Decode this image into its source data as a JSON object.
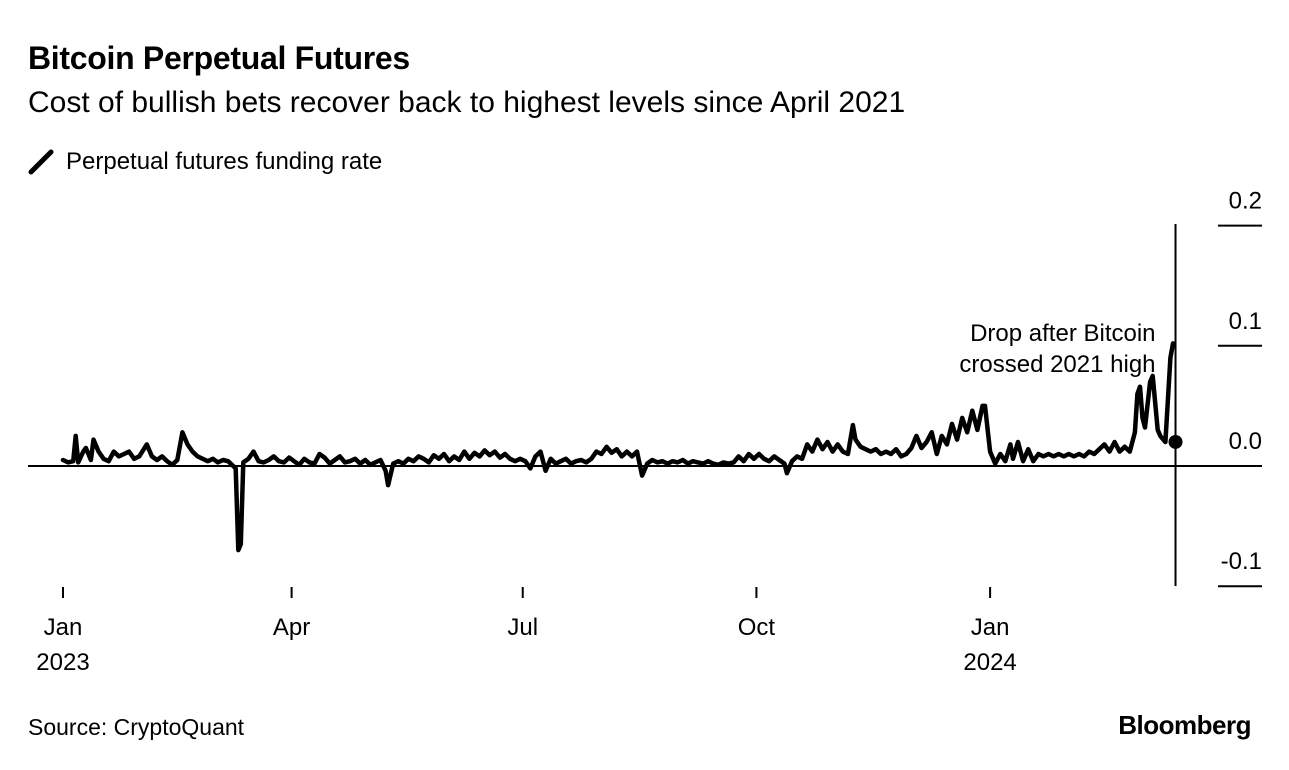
{
  "title": "Bitcoin Perpetual Futures",
  "subtitle": "Cost of bullish bets recover back to highest levels since April 2021",
  "source": "Source: CryptoQuant",
  "brand": "Bloomberg",
  "chart_data": {
    "type": "line",
    "title": "Bitcoin Perpetual Futures",
    "subtitle": "Cost of bullish bets recover back to highest levels since April 2021",
    "legend": [
      "Perpetual futures funding rate"
    ],
    "legend_position": "top-left",
    "y_axis_position": "right",
    "ylim": [
      -0.1,
      0.2
    ],
    "y_ticks": [
      {
        "value": 0.2,
        "label": "0.2"
      },
      {
        "value": 0.1,
        "label": "0.1"
      },
      {
        "value": 0.0,
        "label": "0.0"
      },
      {
        "value": -0.1,
        "label": "-0.1"
      }
    ],
    "x_ticks": [
      {
        "date": "2023-01-01",
        "line1": "Jan",
        "line2": "2023"
      },
      {
        "date": "2023-04-01",
        "line1": "Apr",
        "line2": ""
      },
      {
        "date": "2023-07-01",
        "line1": "Jul",
        "line2": ""
      },
      {
        "date": "2023-10-01",
        "line1": "Oct",
        "line2": ""
      },
      {
        "date": "2024-01-01",
        "line1": "Jan",
        "line2": "2024"
      }
    ],
    "xlim": [
      "2023-01-01",
      "2024-03-22"
    ],
    "color": "#000000",
    "grid": false,
    "annotation": {
      "text_lines": [
        "Drop after Bitcoin",
        "crossed 2021 high"
      ],
      "date": "2024-03-14",
      "value": 0.02
    },
    "series": [
      {
        "name": "Perpetual futures funding rate",
        "points": [
          [
            "2023-01-01",
            0.005
          ],
          [
            "2023-01-03",
            0.003
          ],
          [
            "2023-01-05",
            0.004
          ],
          [
            "2023-01-06",
            0.025
          ],
          [
            "2023-01-07",
            0.003
          ],
          [
            "2023-01-09",
            0.012
          ],
          [
            "2023-01-10",
            0.015
          ],
          [
            "2023-01-12",
            0.005
          ],
          [
            "2023-01-13",
            0.022
          ],
          [
            "2023-01-15",
            0.012
          ],
          [
            "2023-01-17",
            0.006
          ],
          [
            "2023-01-19",
            0.004
          ],
          [
            "2023-01-21",
            0.012
          ],
          [
            "2023-01-23",
            0.008
          ],
          [
            "2023-01-25",
            0.01
          ],
          [
            "2023-01-27",
            0.012
          ],
          [
            "2023-01-29",
            0.006
          ],
          [
            "2023-01-31",
            0.008
          ],
          [
            "2023-02-03",
            0.018
          ],
          [
            "2023-02-05",
            0.008
          ],
          [
            "2023-02-07",
            0.005
          ],
          [
            "2023-02-09",
            0.008
          ],
          [
            "2023-02-11",
            0.004
          ],
          [
            "2023-02-13",
            0.001
          ],
          [
            "2023-02-15",
            0.005
          ],
          [
            "2023-02-17",
            0.028
          ],
          [
            "2023-02-19",
            0.018
          ],
          [
            "2023-02-21",
            0.012
          ],
          [
            "2023-02-23",
            0.008
          ],
          [
            "2023-02-25",
            0.006
          ],
          [
            "2023-02-27",
            0.004
          ],
          [
            "2023-03-01",
            0.006
          ],
          [
            "2023-03-03",
            0.003
          ],
          [
            "2023-03-05",
            0.005
          ],
          [
            "2023-03-07",
            0.004
          ],
          [
            "2023-03-09",
            0.0
          ],
          [
            "2023-03-10",
            -0.002
          ],
          [
            "2023-03-11",
            -0.07
          ],
          [
            "2023-03-12",
            -0.065
          ],
          [
            "2023-03-13",
            0.003
          ],
          [
            "2023-03-15",
            0.006
          ],
          [
            "2023-03-17",
            0.012
          ],
          [
            "2023-03-19",
            0.004
          ],
          [
            "2023-03-21",
            0.003
          ],
          [
            "2023-03-23",
            0.005
          ],
          [
            "2023-03-25",
            0.008
          ],
          [
            "2023-03-27",
            0.004
          ],
          [
            "2023-03-29",
            0.003
          ],
          [
            "2023-03-31",
            0.007
          ],
          [
            "2023-04-02",
            0.004
          ],
          [
            "2023-04-04",
            0.001
          ],
          [
            "2023-04-06",
            0.006
          ],
          [
            "2023-04-08",
            0.003
          ],
          [
            "2023-04-10",
            0.002
          ],
          [
            "2023-04-12",
            0.01
          ],
          [
            "2023-04-14",
            0.007
          ],
          [
            "2023-04-16",
            0.002
          ],
          [
            "2023-04-18",
            0.005
          ],
          [
            "2023-04-20",
            0.008
          ],
          [
            "2023-04-22",
            0.003
          ],
          [
            "2023-04-24",
            0.004
          ],
          [
            "2023-04-26",
            0.006
          ],
          [
            "2023-04-28",
            0.002
          ],
          [
            "2023-04-30",
            0.005
          ],
          [
            "2023-05-02",
            0.001
          ],
          [
            "2023-05-04",
            0.003
          ],
          [
            "2023-05-06",
            0.005
          ],
          [
            "2023-05-08",
            -0.004
          ],
          [
            "2023-05-09",
            -0.016
          ],
          [
            "2023-05-11",
            0.002
          ],
          [
            "2023-05-13",
            0.004
          ],
          [
            "2023-05-15",
            0.002
          ],
          [
            "2023-05-17",
            0.006
          ],
          [
            "2023-05-19",
            0.004
          ],
          [
            "2023-05-21",
            0.008
          ],
          [
            "2023-05-23",
            0.006
          ],
          [
            "2023-05-25",
            0.003
          ],
          [
            "2023-05-27",
            0.009
          ],
          [
            "2023-05-29",
            0.006
          ],
          [
            "2023-05-31",
            0.01
          ],
          [
            "2023-06-02",
            0.004
          ],
          [
            "2023-06-04",
            0.008
          ],
          [
            "2023-06-06",
            0.005
          ],
          [
            "2023-06-08",
            0.012
          ],
          [
            "2023-06-10",
            0.006
          ],
          [
            "2023-06-12",
            0.011
          ],
          [
            "2023-06-14",
            0.008
          ],
          [
            "2023-06-16",
            0.013
          ],
          [
            "2023-06-18",
            0.009
          ],
          [
            "2023-06-20",
            0.012
          ],
          [
            "2023-06-22",
            0.007
          ],
          [
            "2023-06-24",
            0.01
          ],
          [
            "2023-06-26",
            0.006
          ],
          [
            "2023-06-28",
            0.004
          ],
          [
            "2023-06-30",
            0.006
          ],
          [
            "2023-07-02",
            0.004
          ],
          [
            "2023-07-04",
            -0.002
          ],
          [
            "2023-07-06",
            0.008
          ],
          [
            "2023-07-08",
            0.012
          ],
          [
            "2023-07-10",
            -0.004
          ],
          [
            "2023-07-12",
            0.006
          ],
          [
            "2023-07-14",
            0.002
          ],
          [
            "2023-07-16",
            0.004
          ],
          [
            "2023-07-18",
            0.006
          ],
          [
            "2023-07-20",
            0.002
          ],
          [
            "2023-07-22",
            0.004
          ],
          [
            "2023-07-24",
            0.005
          ],
          [
            "2023-07-26",
            0.003
          ],
          [
            "2023-07-28",
            0.006
          ],
          [
            "2023-07-30",
            0.012
          ],
          [
            "2023-08-01",
            0.01
          ],
          [
            "2023-08-03",
            0.016
          ],
          [
            "2023-08-05",
            0.011
          ],
          [
            "2023-08-07",
            0.014
          ],
          [
            "2023-08-09",
            0.008
          ],
          [
            "2023-08-11",
            0.012
          ],
          [
            "2023-08-13",
            0.008
          ],
          [
            "2023-08-15",
            0.012
          ],
          [
            "2023-08-17",
            -0.008
          ],
          [
            "2023-08-19",
            0.002
          ],
          [
            "2023-08-21",
            0.005
          ],
          [
            "2023-08-23",
            0.003
          ],
          [
            "2023-08-25",
            0.004
          ],
          [
            "2023-08-27",
            0.002
          ],
          [
            "2023-08-29",
            0.004
          ],
          [
            "2023-08-31",
            0.003
          ],
          [
            "2023-09-02",
            0.005
          ],
          [
            "2023-09-04",
            0.002
          ],
          [
            "2023-09-06",
            0.004
          ],
          [
            "2023-09-08",
            0.003
          ],
          [
            "2023-09-10",
            0.002
          ],
          [
            "2023-09-12",
            0.004
          ],
          [
            "2023-09-14",
            0.002
          ],
          [
            "2023-09-16",
            0.001
          ],
          [
            "2023-09-18",
            0.003
          ],
          [
            "2023-09-20",
            0.002
          ],
          [
            "2023-09-22",
            0.003
          ],
          [
            "2023-09-24",
            0.008
          ],
          [
            "2023-09-26",
            0.004
          ],
          [
            "2023-09-28",
            0.01
          ],
          [
            "2023-09-30",
            0.006
          ],
          [
            "2023-10-02",
            0.01
          ],
          [
            "2023-10-04",
            0.006
          ],
          [
            "2023-10-06",
            0.004
          ],
          [
            "2023-10-08",
            0.008
          ],
          [
            "2023-10-10",
            0.005
          ],
          [
            "2023-10-12",
            0.002
          ],
          [
            "2023-10-13",
            -0.006
          ],
          [
            "2023-10-15",
            0.004
          ],
          [
            "2023-10-17",
            0.008
          ],
          [
            "2023-10-19",
            0.006
          ],
          [
            "2023-10-21",
            0.018
          ],
          [
            "2023-10-23",
            0.012
          ],
          [
            "2023-10-25",
            0.022
          ],
          [
            "2023-10-27",
            0.014
          ],
          [
            "2023-10-29",
            0.02
          ],
          [
            "2023-10-31",
            0.012
          ],
          [
            "2023-11-02",
            0.018
          ],
          [
            "2023-11-04",
            0.012
          ],
          [
            "2023-11-06",
            0.01
          ],
          [
            "2023-11-08",
            0.034
          ],
          [
            "2023-11-09",
            0.022
          ],
          [
            "2023-11-11",
            0.016
          ],
          [
            "2023-11-13",
            0.014
          ],
          [
            "2023-11-15",
            0.012
          ],
          [
            "2023-11-17",
            0.014
          ],
          [
            "2023-11-19",
            0.01
          ],
          [
            "2023-11-21",
            0.012
          ],
          [
            "2023-11-23",
            0.01
          ],
          [
            "2023-11-25",
            0.014
          ],
          [
            "2023-11-27",
            0.008
          ],
          [
            "2023-11-29",
            0.01
          ],
          [
            "2023-12-01",
            0.015
          ],
          [
            "2023-12-03",
            0.025
          ],
          [
            "2023-12-05",
            0.015
          ],
          [
            "2023-12-07",
            0.02
          ],
          [
            "2023-12-09",
            0.028
          ],
          [
            "2023-12-11",
            0.01
          ],
          [
            "2023-12-13",
            0.025
          ],
          [
            "2023-12-15",
            0.018
          ],
          [
            "2023-12-17",
            0.035
          ],
          [
            "2023-12-19",
            0.022
          ],
          [
            "2023-12-21",
            0.04
          ],
          [
            "2023-12-23",
            0.028
          ],
          [
            "2023-12-25",
            0.046
          ],
          [
            "2023-12-27",
            0.03
          ],
          [
            "2023-12-29",
            0.05
          ],
          [
            "2023-12-30",
            0.05
          ],
          [
            "2024-01-01",
            0.012
          ],
          [
            "2024-01-03",
            0.002
          ],
          [
            "2024-01-05",
            0.01
          ],
          [
            "2024-01-07",
            0.004
          ],
          [
            "2024-01-09",
            0.018
          ],
          [
            "2024-01-10",
            0.006
          ],
          [
            "2024-01-12",
            0.02
          ],
          [
            "2024-01-14",
            0.004
          ],
          [
            "2024-01-16",
            0.014
          ],
          [
            "2024-01-18",
            0.004
          ],
          [
            "2024-01-20",
            0.01
          ],
          [
            "2024-01-22",
            0.008
          ],
          [
            "2024-01-24",
            0.01
          ],
          [
            "2024-01-26",
            0.008
          ],
          [
            "2024-01-28",
            0.01
          ],
          [
            "2024-01-30",
            0.008
          ],
          [
            "2024-02-01",
            0.01
          ],
          [
            "2024-02-03",
            0.008
          ],
          [
            "2024-02-05",
            0.01
          ],
          [
            "2024-02-07",
            0.008
          ],
          [
            "2024-02-09",
            0.012
          ],
          [
            "2024-02-11",
            0.01
          ],
          [
            "2024-02-13",
            0.014
          ],
          [
            "2024-02-15",
            0.018
          ],
          [
            "2024-02-17",
            0.012
          ],
          [
            "2024-02-19",
            0.02
          ],
          [
            "2024-02-21",
            0.012
          ],
          [
            "2024-02-23",
            0.016
          ],
          [
            "2024-02-25",
            0.012
          ],
          [
            "2024-02-27",
            0.028
          ],
          [
            "2024-02-28",
            0.06
          ],
          [
            "2024-02-29",
            0.066
          ],
          [
            "2024-03-01",
            0.04
          ],
          [
            "2024-03-02",
            0.032
          ],
          [
            "2024-03-04",
            0.07
          ],
          [
            "2024-03-05",
            0.075
          ],
          [
            "2024-03-07",
            0.03
          ],
          [
            "2024-03-08",
            0.025
          ],
          [
            "2024-03-10",
            0.02
          ],
          [
            "2024-03-12",
            0.09
          ],
          [
            "2024-03-13",
            0.102
          ]
        ]
      }
    ]
  }
}
